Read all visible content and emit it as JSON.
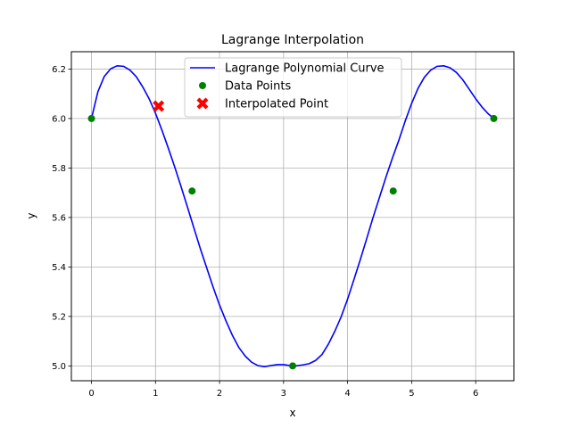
{
  "chart_data": {
    "type": "line",
    "title": "Lagrange Interpolation",
    "xlabel": "x",
    "ylabel": "y",
    "xlim": [
      -0.314,
      6.597
    ],
    "ylim": [
      4.94,
      6.27
    ],
    "xticks": [
      "0",
      "1",
      "2",
      "3",
      "4",
      "5",
      "6"
    ],
    "yticks": [
      "5.0",
      "5.2",
      "5.4",
      "5.6",
      "5.8",
      "6.0",
      "6.2"
    ],
    "grid": true,
    "legend_position": "top-center",
    "series": [
      {
        "name": "Lagrange Polynomial Curve",
        "kind": "line",
        "color": "#0000ff",
        "x": [
          0.0,
          0.1,
          0.2,
          0.3,
          0.4,
          0.5,
          0.6,
          0.7,
          0.8,
          0.9,
          1.0,
          1.1,
          1.2,
          1.3,
          1.4,
          1.5,
          1.6,
          1.7,
          1.8,
          1.9,
          2.0,
          2.1,
          2.2,
          2.3,
          2.4,
          2.5,
          2.6,
          2.7,
          2.8,
          2.9,
          3.0,
          3.1,
          3.2,
          3.3,
          3.4,
          3.5,
          3.6,
          3.7,
          3.8,
          3.9,
          4.0,
          4.1,
          4.2,
          4.3,
          4.4,
          4.5,
          4.6,
          4.7,
          4.8,
          4.9,
          5.0,
          5.1,
          5.2,
          5.3,
          5.4,
          5.5,
          5.6,
          5.7,
          5.8,
          5.9,
          6.0,
          6.1,
          6.2,
          6.283
        ],
        "y": [
          6.0,
          6.108,
          6.17,
          6.201,
          6.213,
          6.211,
          6.196,
          6.169,
          6.128,
          6.08,
          6.021,
          5.953,
          5.88,
          5.804,
          5.724,
          5.641,
          5.557,
          5.474,
          5.396,
          5.318,
          5.246,
          5.182,
          5.124,
          5.075,
          5.04,
          5.015,
          5.001,
          4.997,
          5.001,
          5.005,
          5.005,
          5.001,
          5.0,
          5.004,
          5.009,
          5.022,
          5.046,
          5.088,
          5.14,
          5.199,
          5.27,
          5.35,
          5.431,
          5.516,
          5.602,
          5.683,
          5.764,
          5.84,
          5.912,
          5.99,
          6.061,
          6.122,
          6.167,
          6.196,
          6.211,
          6.213,
          6.205,
          6.186,
          6.156,
          6.118,
          6.08,
          6.046,
          6.018,
          6.0
        ]
      },
      {
        "name": "Data Points",
        "kind": "scatter",
        "marker": "circle",
        "color": "#008000",
        "x": [
          0.0,
          1.571,
          3.142,
          4.712,
          6.283
        ],
        "y": [
          6.0,
          5.707,
          5.0,
          5.707,
          6.0
        ]
      },
      {
        "name": "Interpolated Point",
        "kind": "scatter",
        "marker": "x",
        "color": "#ff0000",
        "x": [
          1.047
        ],
        "y": [
          6.05
        ]
      }
    ]
  }
}
